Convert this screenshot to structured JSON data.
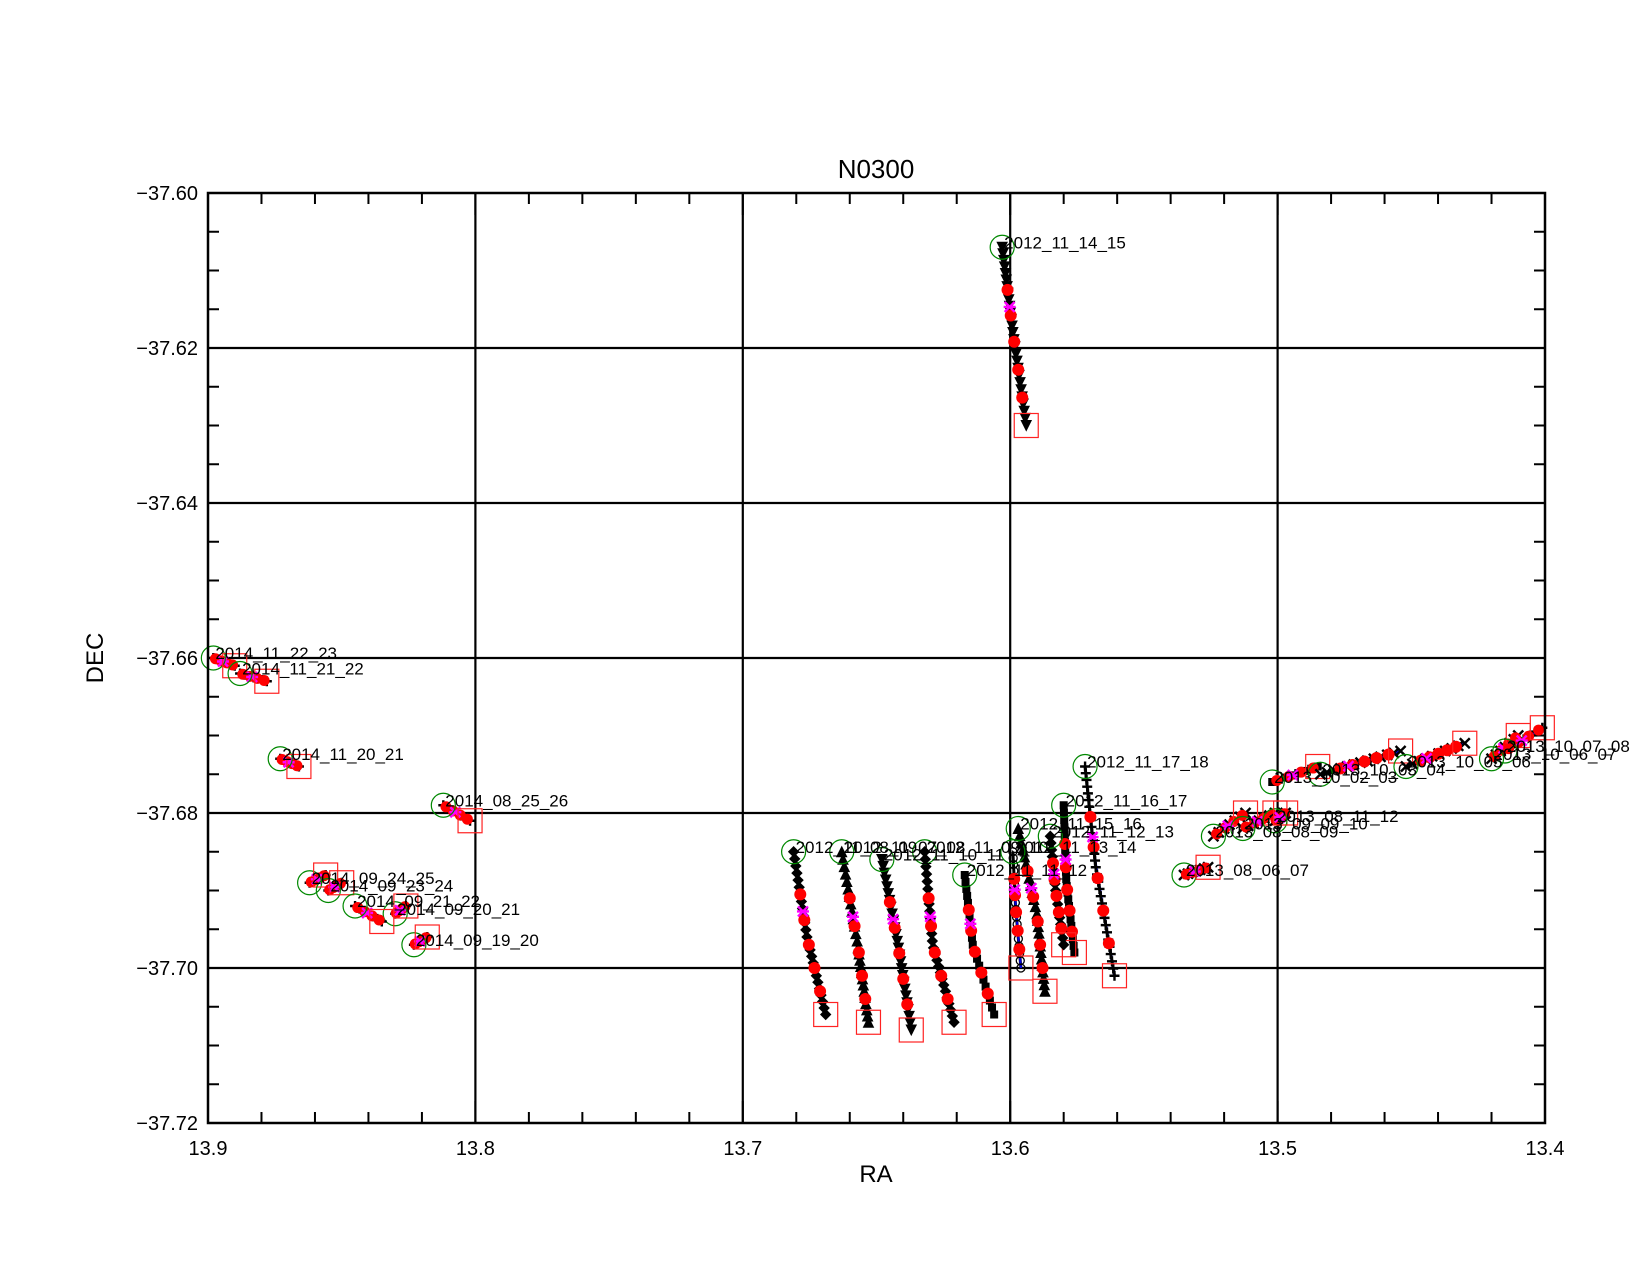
{
  "chart_data": {
    "type": "scatter",
    "title": "N0300",
    "xlabel": "RA",
    "ylabel": "DEC",
    "xlim": [
      13.9,
      13.4
    ],
    "ylim": [
      -37.72,
      -37.6
    ],
    "x_reversed": true,
    "grid": true,
    "x_ticks": [
      {
        "value": 13.9,
        "label": "13.9"
      },
      {
        "value": 13.8,
        "label": "13.8"
      },
      {
        "value": 13.7,
        "label": "13.7"
      },
      {
        "value": 13.6,
        "label": "13.6"
      },
      {
        "value": 13.5,
        "label": "13.5"
      },
      {
        "value": 13.4,
        "label": "13.4"
      }
    ],
    "y_ticks": [
      {
        "value": -37.72,
        "label": "−37.72"
      },
      {
        "value": -37.7,
        "label": "−37.70"
      },
      {
        "value": -37.68,
        "label": "−37.68"
      },
      {
        "value": -37.66,
        "label": "−37.66"
      },
      {
        "value": -37.64,
        "label": "−37.64"
      },
      {
        "value": -37.62,
        "label": "−37.62"
      },
      {
        "value": -37.6,
        "label": "−37.60"
      }
    ],
    "colors": {
      "track": "#000000",
      "fit_line": "#0000dd",
      "point": "#ff0000",
      "star_marker": "#ff00ff",
      "start_marker": "#008800",
      "end_marker": "#ff2222"
    },
    "tracks": [
      {
        "label": "2012_11_14_15",
        "label_visible": true,
        "x": [
          13.603,
          13.599,
          13.594
        ],
        "y": [
          -37.607,
          -37.618,
          -37.63
        ],
        "marker": "triangle-down"
      },
      {
        "label": "2012_11_17_18",
        "label_visible": true,
        "x": [
          13.572,
          13.568,
          13.561
        ],
        "y": [
          -37.674,
          -37.687,
          -37.701
        ],
        "marker": "plus"
      },
      {
        "label": "2012_11_16_17",
        "label_visible": true,
        "x": [
          13.58,
          13.579,
          13.576
        ],
        "y": [
          -37.679,
          -37.689,
          -37.698
        ],
        "marker": "square"
      },
      {
        "label": "2012_11_15_16",
        "label_visible": true,
        "x": [
          13.597,
          13.59,
          13.587
        ],
        "y": [
          -37.682,
          -37.693,
          -37.703
        ],
        "marker": "triangle-up"
      },
      {
        "label": "2012_11_12_13",
        "label_visible": true,
        "x": [
          13.585,
          13.583,
          13.58
        ],
        "y": [
          -37.683,
          -37.69,
          -37.697
        ],
        "marker": "diamond"
      },
      {
        "label": "2012_11_13_14",
        "label_visible": true,
        "x": [
          13.599,
          13.598,
          13.596
        ],
        "y": [
          -37.685,
          -37.692,
          -37.7
        ],
        "marker": "circle"
      },
      {
        "label": "2012_11_11_12",
        "label_visible": true,
        "x": [
          13.617,
          13.614,
          13.606
        ],
        "y": [
          -37.688,
          -37.697,
          -37.706
        ],
        "marker": "square"
      },
      {
        "label": "2012_11_09_10",
        "label_visible": true,
        "x": [
          13.632,
          13.629,
          13.621
        ],
        "y": [
          -37.685,
          -37.697,
          -37.707
        ],
        "marker": "diamond"
      },
      {
        "label": "2012_11_10_11",
        "label_visible": true,
        "x": [
          13.648,
          13.642,
          13.637
        ],
        "y": [
          -37.686,
          -37.697,
          -37.708
        ],
        "marker": "triangle-down"
      },
      {
        "label": "2012_11_07_08",
        "label_visible": true,
        "x": [
          13.663,
          13.657,
          13.653
        ],
        "y": [
          -37.685,
          -37.697,
          -37.707
        ],
        "marker": "triangle-up"
      },
      {
        "label": "2012_11_08_09",
        "label_visible": true,
        "x": [
          13.681,
          13.676,
          13.669
        ],
        "y": [
          -37.685,
          -37.696,
          -37.706
        ],
        "marker": "diamond"
      },
      {
        "label": "2013_08_06_07",
        "label_visible": true,
        "x": [
          13.535,
          13.526
        ],
        "y": [
          -37.688,
          -37.687
        ],
        "marker": "x"
      },
      {
        "label": "2013_08_08_09",
        "label_visible": true,
        "x": [
          13.524,
          13.512
        ],
        "y": [
          -37.683,
          -37.68
        ],
        "marker": "x"
      },
      {
        "label": "2013_09_09_10",
        "label_visible": true,
        "x": [
          13.513,
          13.501
        ],
        "y": [
          -37.682,
          -37.68
        ],
        "marker": "x"
      },
      {
        "label": "2013_08_11_12",
        "label_visible": true,
        "x": [
          13.501,
          13.497
        ],
        "y": [
          -37.681,
          -37.68
        ],
        "marker": "x"
      },
      {
        "label": "2013_10_02_03",
        "label_visible": true,
        "x": [
          13.502,
          13.485
        ],
        "y": [
          -37.676,
          -37.674
        ],
        "marker": "square"
      },
      {
        "label": "2013_10_03_04",
        "label_visible": true,
        "x": [
          13.484,
          13.454
        ],
        "y": [
          -37.675,
          -37.672
        ],
        "marker": "x"
      },
      {
        "label": "2013_10_05_06",
        "label_visible": true,
        "x": [
          13.452,
          13.43
        ],
        "y": [
          -37.674,
          -37.671
        ],
        "marker": "x"
      },
      {
        "label": "2013_10_06_07",
        "label_visible": true,
        "x": [
          13.42,
          13.41
        ],
        "y": [
          -37.673,
          -37.67
        ],
        "marker": "x"
      },
      {
        "label": "2013_10_07_08",
        "label_visible": true,
        "x": [
          13.415,
          13.401
        ],
        "y": [
          -37.672,
          -37.669
        ],
        "marker": "plus"
      },
      {
        "label": "2014_11_22_23",
        "label_visible": true,
        "x": [
          13.898,
          13.89
        ],
        "y": [
          -37.66,
          -37.661
        ],
        "marker": "plus"
      },
      {
        "label": "2014_11_21_22",
        "label_visible": true,
        "x": [
          13.888,
          13.878
        ],
        "y": [
          -37.662,
          -37.663
        ],
        "marker": "plus"
      },
      {
        "label": "2014_11_20_21",
        "label_visible": true,
        "x": [
          13.873,
          13.866
        ],
        "y": [
          -37.673,
          -37.674
        ],
        "marker": "plus"
      },
      {
        "label": "2014_08_25_26",
        "label_visible": true,
        "x": [
          13.812,
          13.802
        ],
        "y": [
          -37.679,
          -37.681
        ],
        "marker": "plus"
      },
      {
        "label": "2014_09_24_25",
        "label_visible": true,
        "x": [
          13.862,
          13.856
        ],
        "y": [
          -37.689,
          -37.688
        ],
        "marker": "plus"
      },
      {
        "label": "2014_09_23_24",
        "label_visible": true,
        "x": [
          13.855,
          13.85
        ],
        "y": [
          -37.69,
          -37.689
        ],
        "marker": "plus"
      },
      {
        "label": "2014_09_20_21",
        "label_visible": true,
        "x": [
          13.83,
          13.826
        ],
        "y": [
          -37.693,
          -37.692
        ],
        "marker": "plus"
      },
      {
        "label": "2014_09_21_22",
        "label_visible": true,
        "x": [
          13.845,
          13.835
        ],
        "y": [
          -37.692,
          -37.694
        ],
        "marker": "plus"
      },
      {
        "label": "2014_09_19_20",
        "label_visible": true,
        "x": [
          13.823,
          13.818
        ],
        "y": [
          -37.697,
          -37.696
        ],
        "marker": "plus"
      }
    ]
  }
}
